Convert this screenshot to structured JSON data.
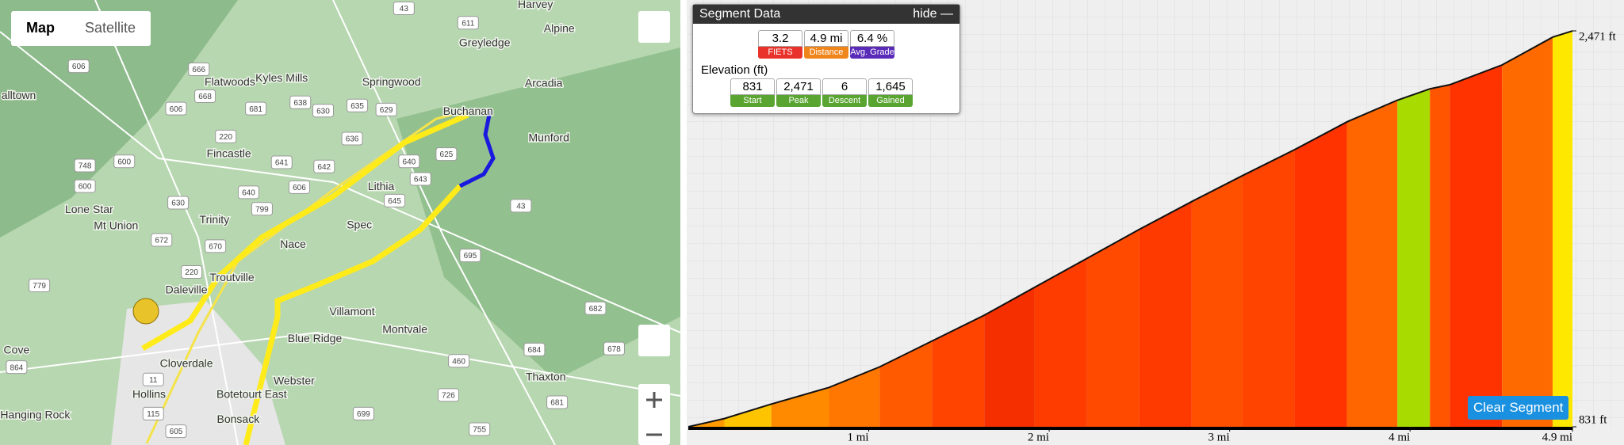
{
  "map": {
    "tabs": [
      "Map",
      "Satellite"
    ],
    "places": [
      "Harvey",
      "Alpine",
      "Greyledge",
      "Flatwoods",
      "Kyles Mills",
      "Springwood",
      "Arcadia",
      "alltown",
      "Buchanan",
      "Munford",
      "Fincastle",
      "Lithia",
      "Lone Star",
      "Mt Union",
      "Trinity",
      "Spec",
      "Nace",
      "Troutville",
      "Daleville",
      "Villamont",
      "Blue Ridge",
      "Montvale",
      "Cove",
      "Cloverdale",
      "Hollins",
      "Botetourt East",
      "Webster",
      "Thaxton",
      "Hanging Rock",
      "Bonsack"
    ],
    "shields": [
      "43",
      "611",
      "606",
      "666",
      "668",
      "606",
      "681",
      "638",
      "630",
      "635",
      "629",
      "220",
      "636",
      "748",
      "600",
      "641",
      "642",
      "640",
      "625",
      "643",
      "600",
      "630",
      "640",
      "606",
      "799",
      "645",
      "43",
      "672",
      "670",
      "695",
      "220",
      "779",
      "682",
      "460",
      "684",
      "678",
      "864",
      "11",
      "726",
      "115",
      "681",
      "699",
      "605",
      "755"
    ]
  },
  "segment_data": {
    "title": "Segment Data",
    "hide": "hide",
    "stats": [
      {
        "value": "3.2",
        "label": "FIETS",
        "color": "#e8322a"
      },
      {
        "value": "4.9 mi",
        "label": "Distance",
        "color": "#f0851c"
      },
      {
        "value": "6.4 %",
        "label": "Avg. Grade",
        "color": "#5a2bb8"
      }
    ],
    "elevation_title": "Elevation (ft)",
    "elevation_stats": [
      {
        "value": "831",
        "label": "Start"
      },
      {
        "value": "2,471",
        "label": "Peak"
      },
      {
        "value": "6",
        "label": "Descent"
      },
      {
        "value": "1,645",
        "label": "Gained"
      }
    ],
    "elevation_color": "#5aa532"
  },
  "button": "Clear Segment",
  "chart_data": {
    "type": "area",
    "x": [
      0,
      0.2,
      0.46,
      0.78,
      1.06,
      1.35,
      1.64,
      1.92,
      2.21,
      2.5,
      2.79,
      3.07,
      3.36,
      3.65,
      3.93,
      4.11,
      4.22,
      4.51,
      4.79,
      4.9
    ],
    "values": [
      831,
      865,
      925,
      994,
      1079,
      1186,
      1293,
      1409,
      1529,
      1649,
      1764,
      1871,
      1979,
      2094,
      2184,
      2231,
      2248,
      2330,
      2445,
      2471
    ],
    "segment_colors": [
      "#ff9a00",
      "#ffc400",
      "#ff8a00",
      "#ff7700",
      "#ff5a00",
      "#ff4400",
      "#f52f00",
      "#ff3c00",
      "#ff4a00",
      "#ff3a00",
      "#ff5000",
      "#ff4400",
      "#ff3300",
      "#ff6600",
      "#a8dc00",
      "#ff5500",
      "#ff3300",
      "#ff6a00",
      "#ffe800"
    ],
    "xlim": [
      0,
      4.9
    ],
    "ylim": [
      831,
      2599
    ],
    "xticks": [
      {
        "value": 1,
        "label": "1 mi"
      },
      {
        "value": 2,
        "label": "2 mi"
      },
      {
        "value": 3,
        "label": "3 mi"
      },
      {
        "value": 4,
        "label": "4 mi"
      },
      {
        "value": 4.9,
        "label": "4.9 mi"
      }
    ],
    "yticks": [
      {
        "value": 831,
        "label": "831 ft"
      },
      {
        "value": 2471,
        "label": "2,471 ft"
      }
    ]
  }
}
